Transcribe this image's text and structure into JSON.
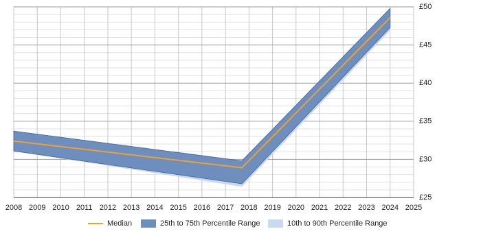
{
  "chart_data": {
    "type": "band-line",
    "x": [
      2008,
      2017.7,
      2024
    ],
    "xlim": [
      2008,
      2025
    ],
    "xticks": [
      2008,
      2009,
      2010,
      2011,
      2012,
      2013,
      2014,
      2015,
      2016,
      2017,
      2018,
      2019,
      2020,
      2021,
      2022,
      2023,
      2024,
      2025
    ],
    "ylim": [
      25,
      50
    ],
    "yticks": [
      {
        "value": 25,
        "label": "£25"
      },
      {
        "value": 30,
        "label": "£30"
      },
      {
        "value": 35,
        "label": "£35"
      },
      {
        "value": 40,
        "label": "£40"
      },
      {
        "value": 45,
        "label": "£45"
      },
      {
        "value": 50,
        "label": "£50"
      }
    ],
    "yticks_minor": [
      26,
      27,
      28,
      29,
      31,
      32,
      33,
      34,
      36,
      37,
      38,
      39,
      41,
      42,
      43,
      44,
      46,
      47,
      48,
      49
    ],
    "grid": true,
    "legend": "bottom",
    "series": [
      {
        "name": "Median",
        "color": "#f0a030",
        "values": [
          32.4,
          28.9,
          48.6
        ]
      },
      {
        "name": "25th to 75th Percentile Range",
        "color": "#6e8fbe",
        "lower": [
          31.1,
          26.8,
          47.3
        ],
        "upper": [
          33.7,
          29.8,
          49.8
        ]
      },
      {
        "name": "10th to 90th Percentile Range",
        "color": "#c9daef",
        "lower": [
          31.1,
          26.4,
          46.9
        ],
        "upper": [
          33.7,
          29.8,
          49.8
        ]
      }
    ]
  }
}
